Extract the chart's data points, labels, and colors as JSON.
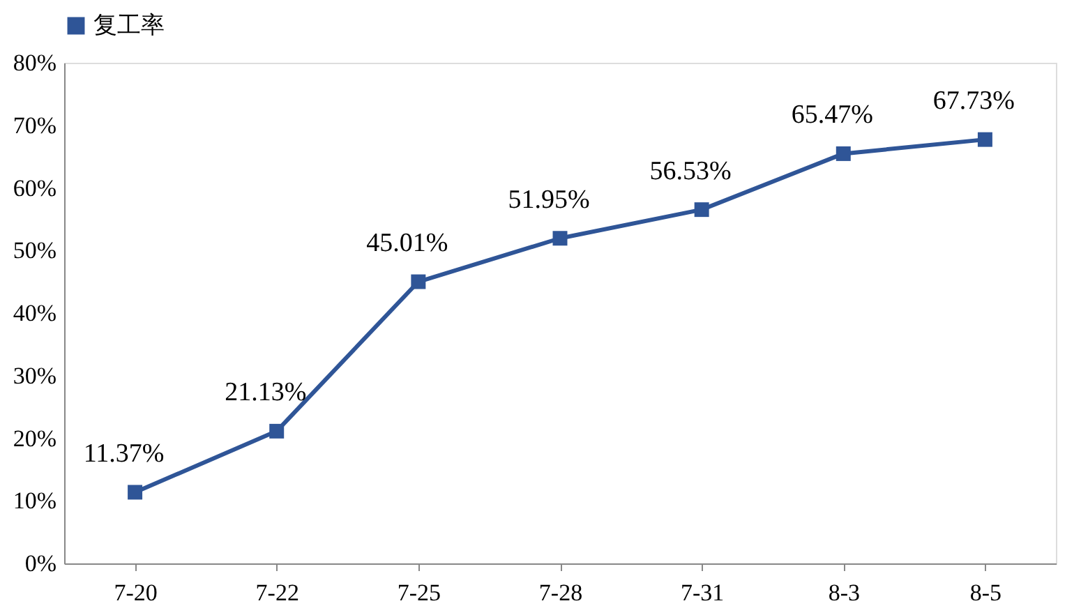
{
  "chart_data": {
    "type": "line",
    "categories": [
      "7-20",
      "7-22",
      "7-25",
      "7-28",
      "7-31",
      "8-3",
      "8-5"
    ],
    "series": [
      {
        "name": "复工率",
        "color": "#2f5597",
        "values": [
          11.37,
          21.13,
          45.01,
          51.95,
          56.53,
          65.47,
          67.73
        ],
        "value_labels": [
          "11.37%",
          "21.13%",
          "45.01%",
          "51.95%",
          "56.53%",
          "65.47%",
          "67.73%"
        ]
      }
    ],
    "ylim": [
      0,
      80
    ],
    "yticks": [
      {
        "value": 0,
        "label": "0%"
      },
      {
        "value": 10,
        "label": "10%"
      },
      {
        "value": 20,
        "label": "20%"
      },
      {
        "value": 30,
        "label": "30%"
      },
      {
        "value": 40,
        "label": "40%"
      },
      {
        "value": 50,
        "label": "50%"
      },
      {
        "value": 60,
        "label": "60%"
      },
      {
        "value": 70,
        "label": "70%"
      },
      {
        "value": 80,
        "label": "80%"
      }
    ],
    "marker": "square",
    "line_style": "solid",
    "legend": "top",
    "grid": false
  }
}
